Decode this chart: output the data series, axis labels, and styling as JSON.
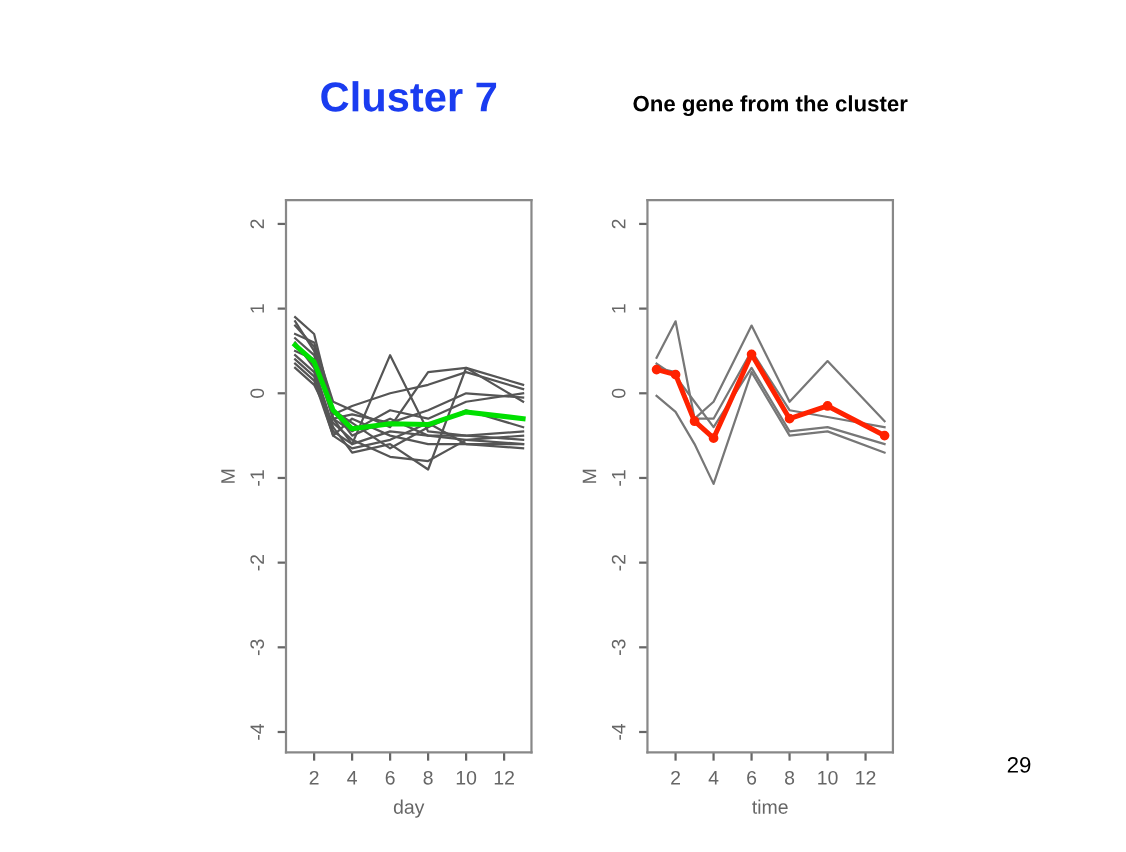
{
  "chart_data": [
    {
      "type": "line",
      "title": "Cluster 7",
      "xlabel": "day",
      "ylabel": "M",
      "x": [
        1,
        2,
        3,
        4,
        6,
        8,
        10,
        13
      ],
      "xlim": [
        0.52,
        13.44
      ],
      "ylim": [
        -4.24,
        2.28
      ],
      "xticks": [
        2,
        4,
        6,
        8,
        10,
        12
      ],
      "yticks": [
        -4,
        -3,
        -2,
        -1,
        0,
        1,
        2
      ],
      "grid": false,
      "line_style": "solid",
      "series": [
        {
          "color": "#555555",
          "values": [
            0.9,
            0.7,
            -0.2,
            -0.5,
            -0.3,
            -0.5,
            -0.55,
            -0.6
          ]
        },
        {
          "color": "#555555",
          "values": [
            0.85,
            0.5,
            -0.3,
            -0.6,
            0.45,
            -0.45,
            -0.5,
            -0.55
          ]
        },
        {
          "color": "#555555",
          "values": [
            0.7,
            0.6,
            -0.1,
            -0.2,
            -0.4,
            0.25,
            0.3,
            -0.1
          ]
        },
        {
          "color": "#555555",
          "values": [
            0.6,
            0.3,
            -0.4,
            -0.7,
            -0.6,
            -0.9,
            0.3,
            0.1
          ]
        },
        {
          "color": "#555555",
          "values": [
            0.5,
            0.4,
            -0.3,
            -0.45,
            -0.2,
            -0.3,
            -0.1,
            0.0
          ]
        },
        {
          "color": "#555555",
          "values": [
            0.4,
            0.2,
            -0.5,
            -0.3,
            -0.5,
            -0.6,
            -0.6,
            -0.65
          ]
        },
        {
          "color": "#555555",
          "values": [
            0.3,
            0.1,
            -0.35,
            -0.55,
            -0.75,
            -0.8,
            -0.55,
            -0.5
          ]
        },
        {
          "color": "#555555",
          "values": [
            0.55,
            0.35,
            -0.25,
            -0.15,
            0.0,
            0.1,
            0.25,
            0.05
          ]
        },
        {
          "color": "#555555",
          "values": [
            0.8,
            0.55,
            -0.2,
            -0.35,
            -0.65,
            -0.4,
            -0.2,
            -0.4
          ]
        },
        {
          "color": "#555555",
          "values": [
            0.45,
            0.25,
            -0.45,
            -0.6,
            -0.45,
            -0.5,
            -0.5,
            -0.45
          ]
        },
        {
          "color": "#555555",
          "values": [
            0.65,
            0.45,
            -0.3,
            -0.25,
            -0.35,
            -0.2,
            0.0,
            -0.05
          ]
        },
        {
          "color": "#555555",
          "values": [
            0.35,
            0.15,
            -0.5,
            -0.65,
            -0.55,
            -0.35,
            -0.6,
            -0.6
          ]
        },
        {
          "color": "#00e000",
          "values": [
            0.57,
            0.37,
            -0.2,
            -0.42,
            -0.36,
            -0.37,
            -0.22,
            -0.3
          ]
        }
      ]
    },
    {
      "type": "line",
      "title": "One gene from the cluster",
      "xlabel": "time",
      "ylabel": "M",
      "x": [
        1,
        2,
        3,
        4,
        6,
        8,
        10,
        13
      ],
      "xlim": [
        0.52,
        13.44
      ],
      "ylim": [
        -4.24,
        2.28
      ],
      "xticks": [
        2,
        4,
        6,
        8,
        10,
        12
      ],
      "yticks": [
        -4,
        -3,
        -2,
        -1,
        0,
        1,
        2
      ],
      "grid": false,
      "line_style": "solid",
      "annotations": [
        "29"
      ],
      "series": [
        {
          "color": "#777777",
          "values": [
            0.42,
            0.85,
            -0.3,
            -0.1,
            0.8,
            -0.1,
            0.38,
            -0.33
          ]
        },
        {
          "color": "#777777",
          "values": [
            -0.03,
            -0.22,
            -0.6,
            -1.07,
            0.25,
            -0.5,
            -0.45,
            -0.7
          ]
        },
        {
          "color": "#777777",
          "values": [
            0.35,
            0.2,
            -0.1,
            -0.4,
            0.3,
            -0.45,
            -0.4,
            -0.6
          ]
        },
        {
          "color": "#777777",
          "values": [
            0.3,
            0.25,
            -0.3,
            -0.3,
            0.5,
            -0.2,
            -0.28,
            -0.4
          ]
        },
        {
          "color": "#ff2200",
          "marker": "circle",
          "values": [
            0.28,
            0.22,
            -0.33,
            -0.53,
            0.46,
            -0.3,
            -0.15,
            -0.5
          ]
        }
      ]
    }
  ]
}
